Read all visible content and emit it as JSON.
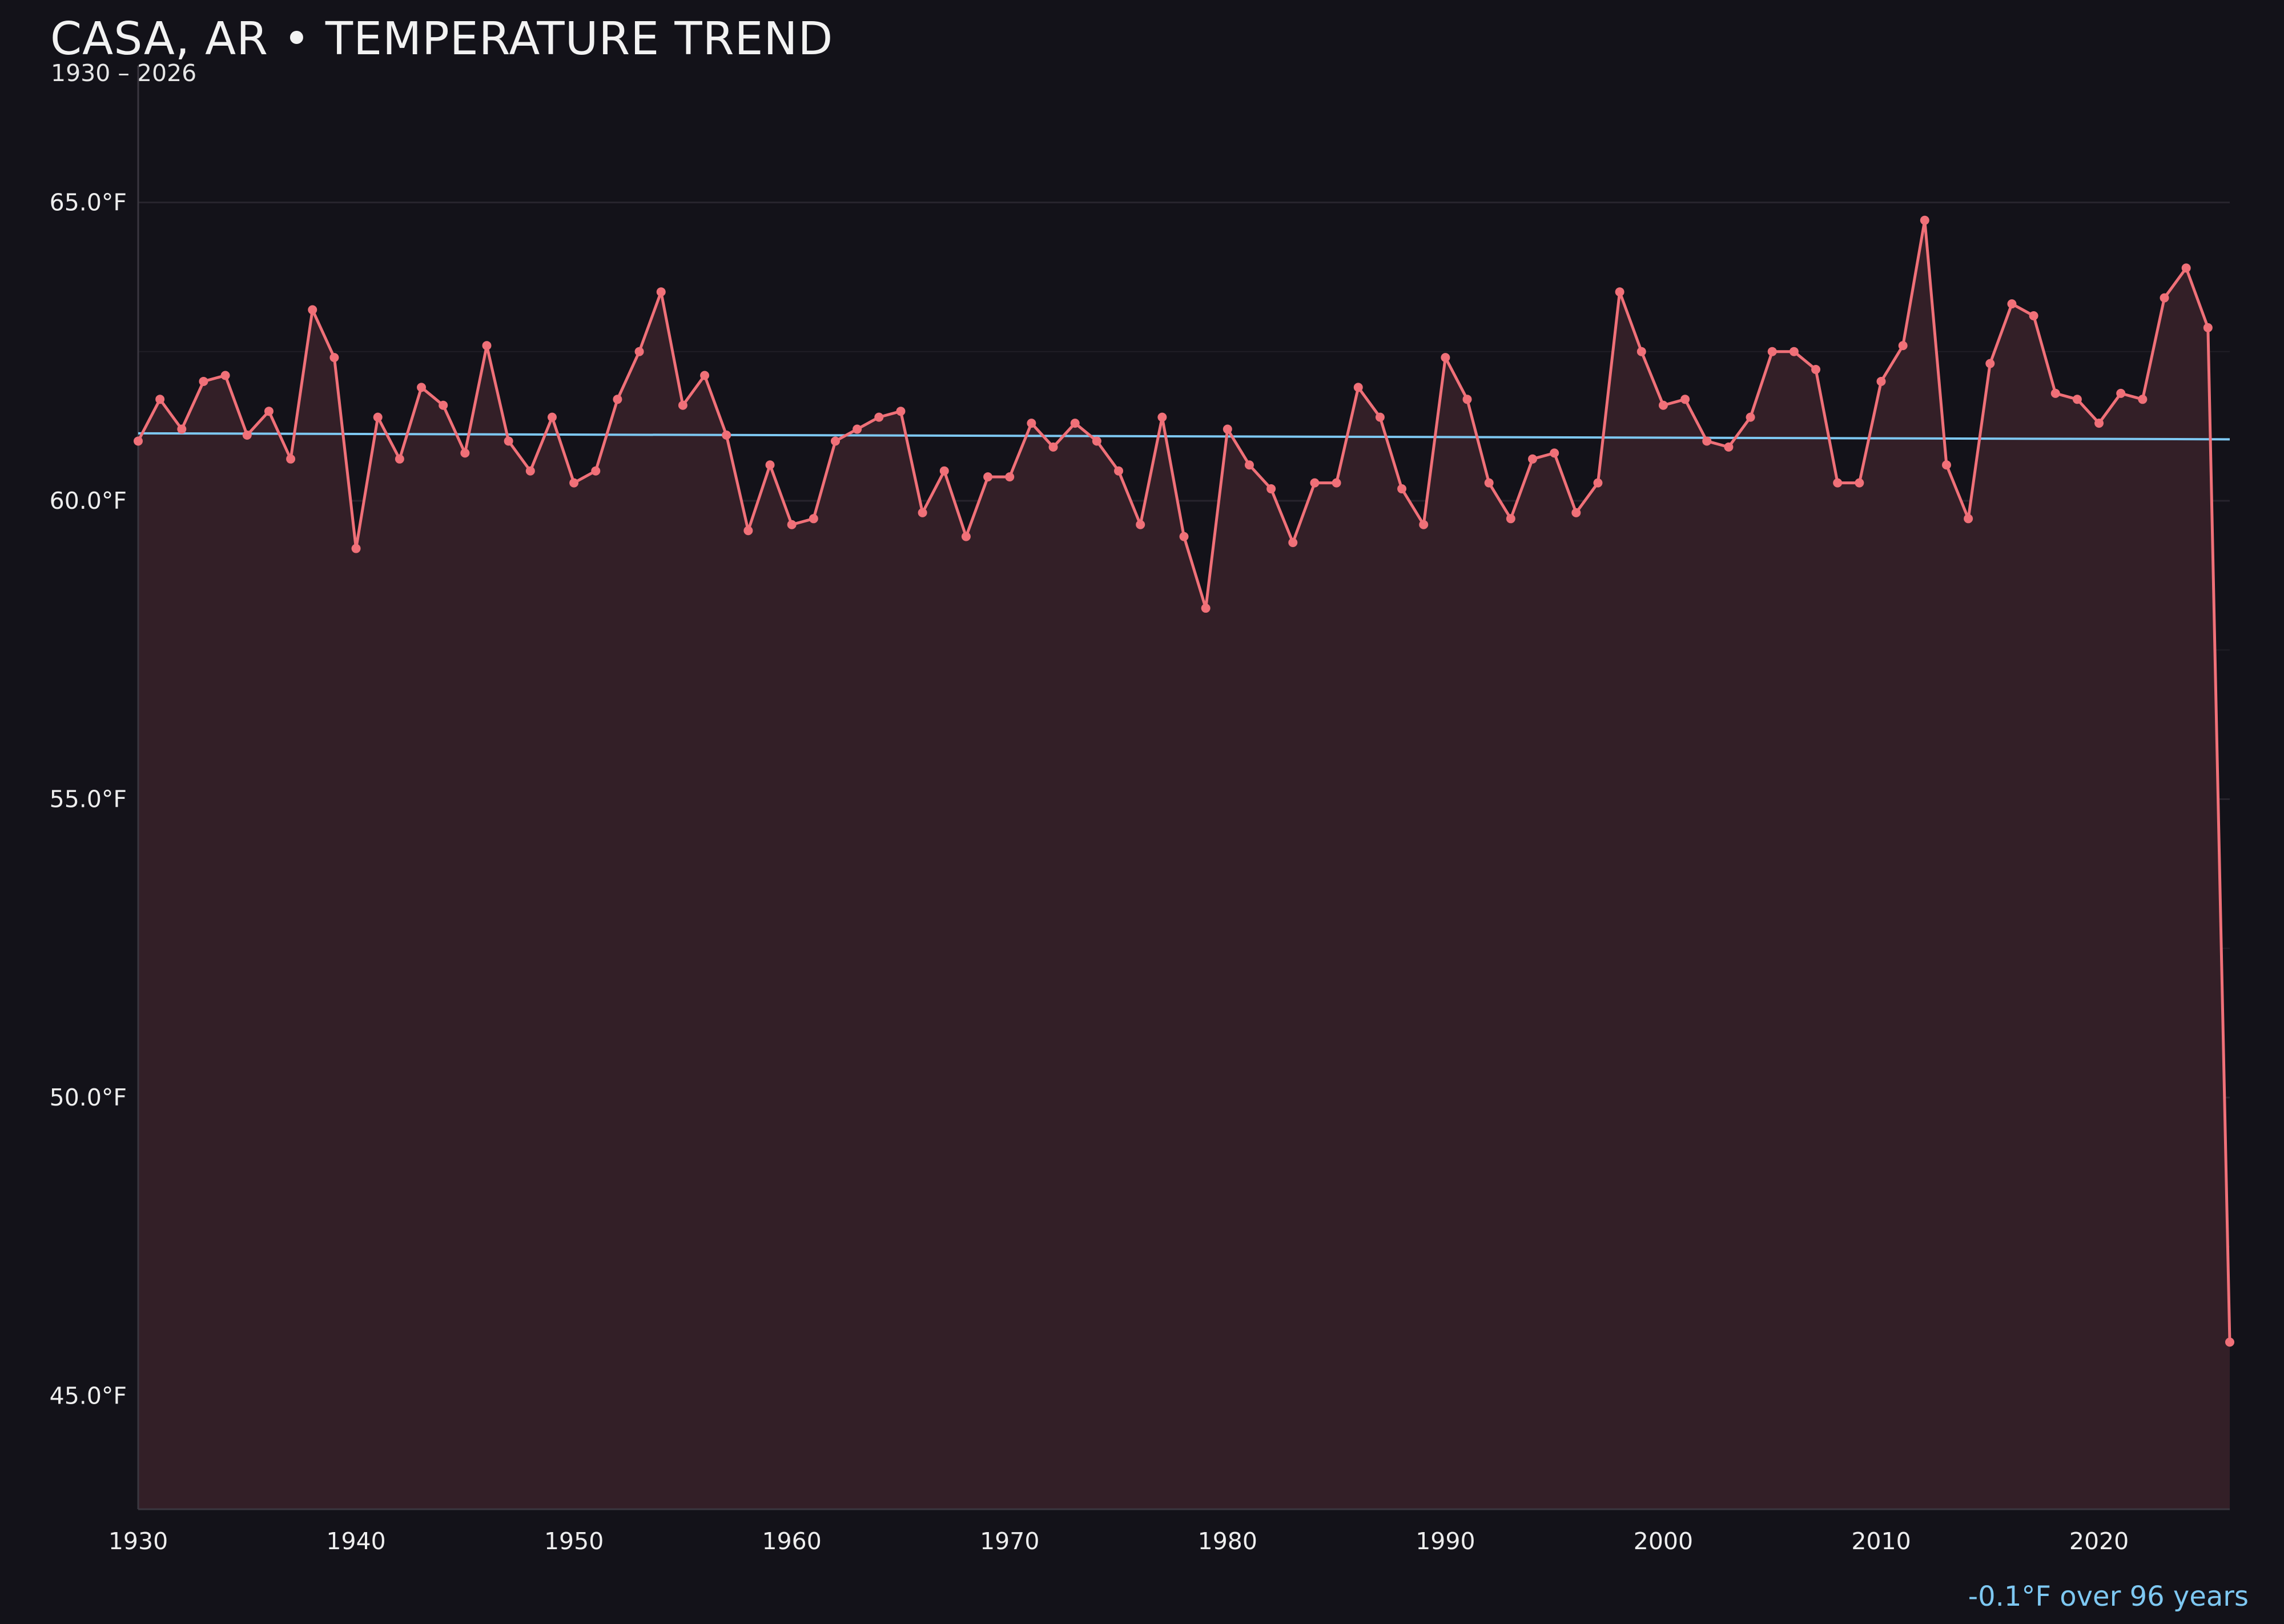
{
  "header": {
    "title": "CASA, AR • TEMPERATURE TREND",
    "subtitle": "1930 – 2026"
  },
  "footer": {
    "trend_note": "-0.1°F over 96 years"
  },
  "colors": {
    "background": "#131219",
    "series_line": "#f07078",
    "series_fill": "#331f27",
    "trend_line": "#7ec8f2",
    "grid": "#2a2730",
    "text": "#eeeeee"
  },
  "chart_data": {
    "type": "line",
    "title": "CASA, AR • TEMPERATURE TREND",
    "subtitle": "1930 – 2026",
    "xlabel": "",
    "ylabel": "",
    "y_unit": "°F",
    "xlim": [
      1930,
      2026
    ],
    "ylim": [
      43.1,
      67.1
    ],
    "x_ticks": [
      1930,
      1940,
      1950,
      1960,
      1970,
      1980,
      1990,
      2000,
      2010,
      2020
    ],
    "y_ticks": [
      45.0,
      50.0,
      55.0,
      60.0,
      65.0
    ],
    "y_tick_labels": [
      "45.0°F",
      "50.0°F",
      "55.0°F",
      "60.0°F",
      "65.0°F"
    ],
    "grid": true,
    "area_fill": true,
    "series": [
      {
        "x": [
          1930,
          1931,
          1932,
          1933,
          1934,
          1935,
          1936,
          1937,
          1938,
          1939,
          1940,
          1941,
          1942,
          1943,
          1944,
          1945,
          1946,
          1947,
          1948,
          1949,
          1950,
          1951,
          1952,
          1953,
          1954,
          1955,
          1956,
          1957,
          1958,
          1959,
          1960,
          1961,
          1962,
          1963,
          1964,
          1965,
          1966,
          1967,
          1968,
          1969,
          1970,
          1971,
          1972,
          1973,
          1974,
          1975,
          1976,
          1977,
          1978,
          1979,
          1980,
          1981,
          1982,
          1983,
          1984,
          1985,
          1986,
          1987,
          1988,
          1989,
          1990,
          1991,
          1992,
          1993,
          1994,
          1995,
          1996,
          1997,
          1998,
          1999,
          2000,
          2001,
          2002,
          2003,
          2004,
          2005,
          2006,
          2007,
          2008,
          2009,
          2010,
          2011,
          2012,
          2013,
          2014,
          2015,
          2016,
          2017,
          2018,
          2019,
          2020,
          2021,
          2022,
          2023,
          2024,
          2025,
          2026
        ],
        "values": [
          61.0,
          61.7,
          61.2,
          62.0,
          62.1,
          61.1,
          61.5,
          60.7,
          63.2,
          62.4,
          59.2,
          61.4,
          60.7,
          61.9,
          61.6,
          60.8,
          62.6,
          61.0,
          60.5,
          61.4,
          60.3,
          60.5,
          61.7,
          62.5,
          63.5,
          61.6,
          62.1,
          61.1,
          59.5,
          60.6,
          59.6,
          59.7,
          61.0,
          61.2,
          61.4,
          61.5,
          59.8,
          60.5,
          59.4,
          60.4,
          60.4,
          61.3,
          60.9,
          61.3,
          61.0,
          60.5,
          59.6,
          61.4,
          59.4,
          58.2,
          61.2,
          60.6,
          60.2,
          59.3,
          60.3,
          60.3,
          61.9,
          61.4,
          60.2,
          59.6,
          62.4,
          61.7,
          60.3,
          59.7,
          60.7,
          60.8,
          59.8,
          60.3,
          63.5,
          62.5,
          61.6,
          61.7,
          61.0,
          60.9,
          61.4,
          62.5,
          62.5,
          62.2,
          60.3,
          60.3,
          62.0,
          62.6,
          64.7,
          60.6,
          59.7,
          62.3,
          63.3,
          63.1,
          61.8,
          61.7,
          61.3,
          61.8,
          61.7,
          63.4,
          63.9,
          62.9,
          45.9
        ]
      }
    ],
    "trend_line": {
      "x": [
        1930,
        2026
      ],
      "values": [
        61.13,
        61.03
      ]
    }
  }
}
